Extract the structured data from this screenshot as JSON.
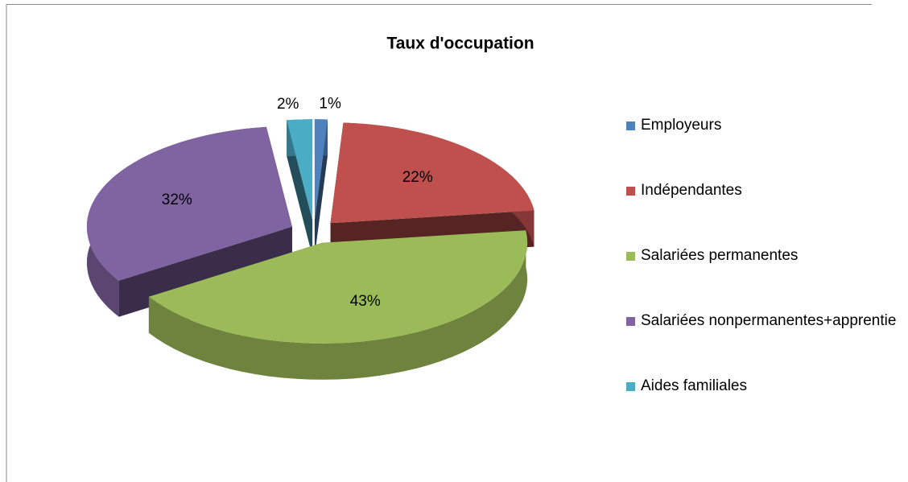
{
  "chart_data": {
    "type": "pie3d",
    "title": "Taux d'occupation",
    "categories": [
      "Employeurs",
      "Indépendantes",
      "Salariées permanentes",
      "Salariées nonpermanentes+apprentie",
      "Aides familiales"
    ],
    "values": [
      1,
      22,
      43,
      32,
      2
    ],
    "value_labels": [
      "1%",
      "22%",
      "43%",
      "32%",
      "2%"
    ],
    "colors": [
      "#4f81bd",
      "#c0504d",
      "#9bbb59",
      "#8064a2",
      "#4bacc6"
    ],
    "legend": "right"
  }
}
